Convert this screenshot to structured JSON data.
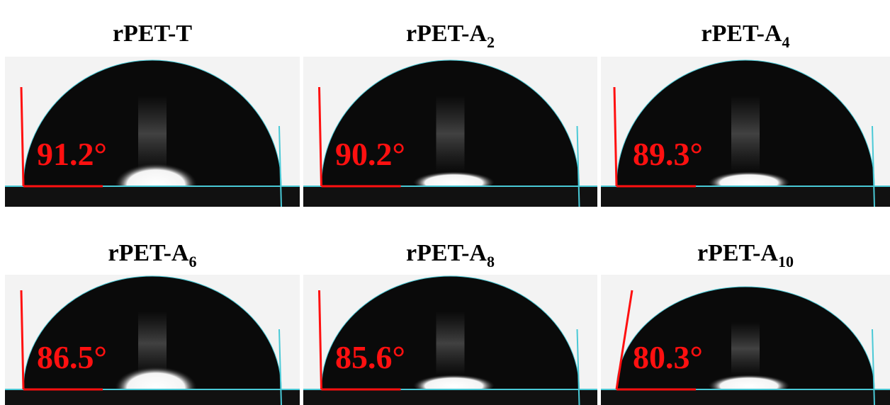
{
  "panels": [
    {
      "title": {
        "text": "rPET-T",
        "subscript": null
      },
      "angle_label": "91.2°"
    },
    {
      "title": {
        "text": "rPET-A",
        "subscript": "2"
      },
      "angle_label": "90.2°"
    },
    {
      "title": {
        "text": "rPET-A",
        "subscript": "4"
      },
      "angle_label": "89.3°"
    },
    {
      "title": {
        "text": "rPET-A",
        "subscript": "6"
      },
      "angle_label": "86.5°"
    },
    {
      "title": {
        "text": "rPET-A",
        "subscript": "8"
      },
      "angle_label": "85.6°"
    },
    {
      "title": {
        "text": "rPET-A",
        "subscript": "10"
      },
      "angle_label": "80.3°"
    }
  ]
}
